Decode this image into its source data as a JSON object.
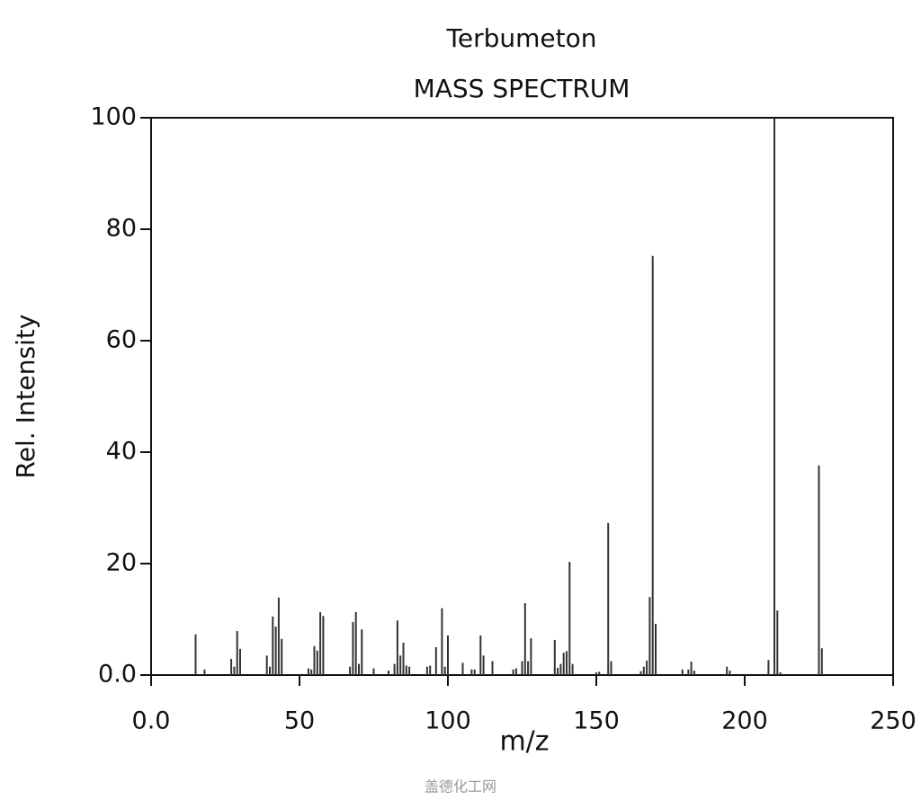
{
  "chart_data": {
    "type": "spectrum",
    "title": "Terbumeton",
    "subtitle": "MASS SPECTRUM",
    "x_label": "m/z",
    "y_label": "Rel. Intensity",
    "color": "#333333",
    "xlim": [
      0,
      250
    ],
    "xticks": [
      {
        "value": 0,
        "label": "0.0"
      },
      50,
      100,
      150,
      200,
      250
    ],
    "ylim": [
      0,
      100
    ],
    "yticks": [
      {
        "value": 0,
        "label": "0.0"
      },
      20,
      40,
      60,
      80,
      100
    ],
    "x": [
      15,
      18,
      27,
      28,
      29,
      30,
      39,
      40,
      41,
      42,
      43,
      44,
      53,
      54,
      55,
      56,
      57,
      58,
      67,
      68,
      69,
      70,
      71,
      75,
      80,
      82,
      83,
      84,
      85,
      86,
      87,
      93,
      94,
      96,
      98,
      99,
      100,
      105,
      108,
      109,
      111,
      112,
      115,
      122,
      123,
      125,
      126,
      127,
      128,
      136,
      137,
      138,
      139,
      140,
      141,
      142,
      150,
      151,
      154,
      155,
      165,
      166,
      167,
      168,
      169,
      170,
      179,
      181,
      182,
      183,
      194,
      195,
      208,
      210,
      211,
      212,
      225,
      226
    ],
    "values": [
      7.3,
      1,
      2.9,
      1.5,
      7.9,
      4.7,
      3.5,
      1.5,
      10.5,
      8.7,
      13.9,
      6.5,
      1.2,
      1,
      5.2,
      4.4,
      11.3,
      10.6,
      1.5,
      9.5,
      11.3,
      2,
      8.2,
      1.2,
      0.8,
      2,
      9.8,
      3.5,
      5.8,
      1.7,
      1.5,
      1.5,
      1.7,
      5,
      12,
      1.5,
      7.1,
      2.2,
      1,
      1,
      7.1,
      3.5,
      2.5,
      1,
      1.2,
      2.5,
      12.9,
      2.5,
      6.6,
      6.3,
      1.3,
      2,
      4,
      4.3,
      20.3,
      2,
      0.5,
      0.6,
      27.3,
      2.5,
      0.7,
      1.5,
      2.6,
      14,
      75.2,
      9.2,
      1,
      1,
      2.4,
      0.8,
      1.5,
      0.8,
      2.7,
      100,
      11.6,
      0.5,
      37.6,
      4.8
    ]
  },
  "watermark": "盖德化工网"
}
